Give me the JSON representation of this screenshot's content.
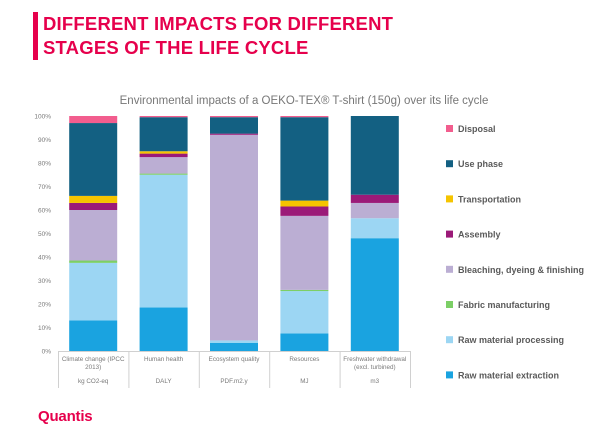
{
  "slide": {
    "title_line1": "DIFFERENT IMPACTS FOR DIFFERENT",
    "title_line2": "STAGES OF THE LIFE CYCLE",
    "logo": "Quantis"
  },
  "colors": {
    "accent": "#e6004c",
    "Disposal": "#f25d8e",
    "Use phase": "#136082",
    "Transportation": "#f5c400",
    "Assembly": "#9b1a78",
    "Bleaching, dyeing & finishing": "#bbaed3",
    "Fabric manufacturing": "#7ccf66",
    "Raw material processing": "#9cd6f3",
    "Raw material extraction": "#1aa3e0"
  },
  "chart_data": {
    "type": "bar",
    "stacked": true,
    "title": "Environmental impacts  of a OEKO-TEX® T-shirt (150g) over its life cycle",
    "categories": [
      "Climate change (IPCC 2013)",
      "Human health",
      "Ecosystem quality",
      "Resources",
      "Freshwater withdrawal (excl. turbined)"
    ],
    "category_lines": [
      [
        "Climate change (IPCC",
        "2013)"
      ],
      [
        "Human health"
      ],
      [
        "Ecosystem quality"
      ],
      [
        "Resources"
      ],
      [
        "Freshwater withdrawal",
        "(excl. turbined)"
      ]
    ],
    "units": [
      "kg CO2-eq",
      "DALY",
      "PDF.m2.y",
      "MJ",
      "m3"
    ],
    "ylim": [
      0,
      100
    ],
    "yticks": [
      "0%",
      "10%",
      "20%",
      "30%",
      "40%",
      "50%",
      "60%",
      "70%",
      "80%",
      "90%",
      "100%"
    ],
    "grid": false,
    "legend_position": "right",
    "series": [
      {
        "name": "Raw material extraction",
        "values": [
          13,
          18.5,
          3.5,
          7.5,
          48
        ]
      },
      {
        "name": "Raw material processing",
        "values": [
          24.5,
          56.5,
          1,
          18,
          8.5
        ]
      },
      {
        "name": "Fabric manufacturing",
        "values": [
          1,
          0.5,
          0,
          0.5,
          0
        ]
      },
      {
        "name": "Bleaching, dyeing & finishing",
        "values": [
          21.5,
          7,
          87.5,
          31.5,
          6.5
        ]
      },
      {
        "name": "Assembly",
        "values": [
          3,
          1.5,
          0.5,
          4,
          3.5
        ]
      },
      {
        "name": "Transportation",
        "values": [
          3,
          1,
          0,
          2.5,
          0
        ]
      },
      {
        "name": "Use phase",
        "values": [
          31,
          14.5,
          7,
          35.5,
          33.5
        ]
      },
      {
        "name": "Disposal",
        "values": [
          3,
          0.5,
          0.5,
          0.5,
          0
        ]
      }
    ]
  }
}
